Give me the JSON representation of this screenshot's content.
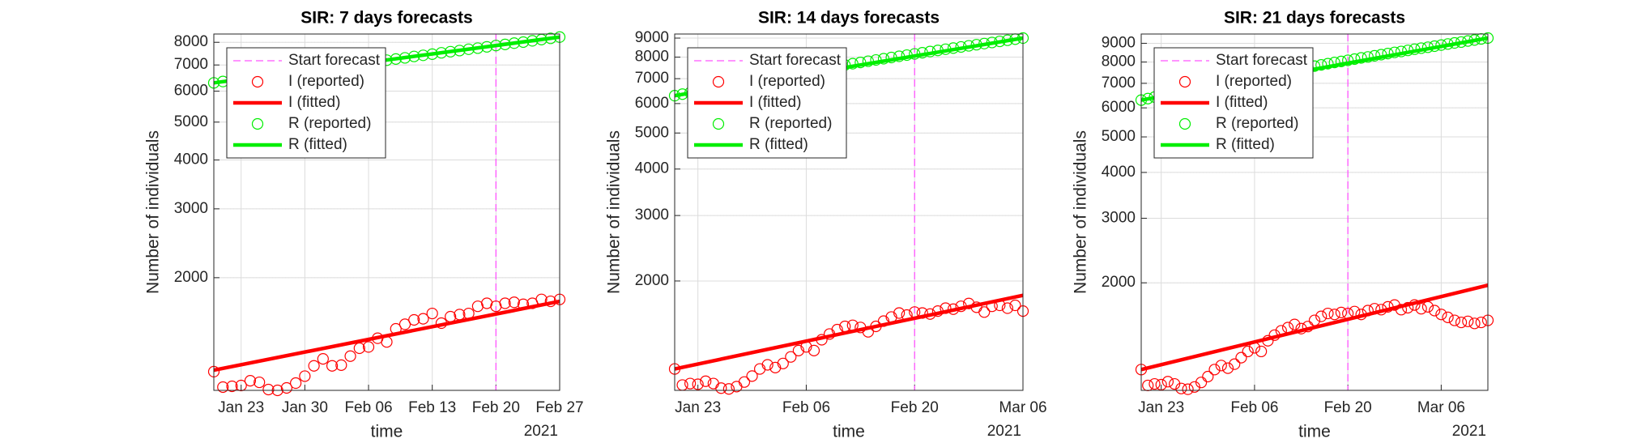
{
  "chart_data": [
    {
      "type": "line",
      "title": "SIR: 7 days forecasts",
      "xlabel": "time",
      "ylabel": "Number of individuals",
      "x_secondary_label": "2021",
      "log_y": true,
      "grid": true,
      "legend_loc": "upper left",
      "xlim": [
        "2021-01-20",
        "2021-02-27"
      ],
      "xticks": [
        {
          "value": "2021-01-23",
          "label": "Jan 23"
        },
        {
          "value": "2021-01-30",
          "label": "Jan 30"
        },
        {
          "value": "2021-02-06",
          "label": "Feb 06"
        },
        {
          "value": "2021-02-13",
          "label": "Feb 13"
        },
        {
          "value": "2021-02-20",
          "label": "Feb 20"
        },
        {
          "value": "2021-02-27",
          "label": "Feb 27"
        }
      ],
      "ylim": [
        1030,
        8400
      ],
      "yticks": [
        2000,
        3000,
        4000,
        5000,
        6000,
        7000,
        8000
      ],
      "forecast_line": {
        "name": "Start forecast",
        "x": "2021-02-20",
        "color": "#ff55ff"
      },
      "x": [
        "2021-01-20",
        "2021-01-21",
        "2021-01-22",
        "2021-01-23",
        "2021-01-24",
        "2021-01-25",
        "2021-01-26",
        "2021-01-27",
        "2021-01-28",
        "2021-01-29",
        "2021-01-30",
        "2021-01-31",
        "2021-02-01",
        "2021-02-02",
        "2021-02-03",
        "2021-02-04",
        "2021-02-05",
        "2021-02-06",
        "2021-02-07",
        "2021-02-08",
        "2021-02-09",
        "2021-02-10",
        "2021-02-11",
        "2021-02-12",
        "2021-02-13",
        "2021-02-14",
        "2021-02-15",
        "2021-02-16",
        "2021-02-17",
        "2021-02-18",
        "2021-02-19",
        "2021-02-20",
        "2021-02-21",
        "2021-02-22",
        "2021-02-23",
        "2021-02-24",
        "2021-02-25",
        "2021-02-26",
        "2021-02-27"
      ],
      "series": [
        {
          "name": "I (reported)",
          "color": "#ff0000",
          "mode": "markers",
          "values": [
            1150,
            1050,
            1055,
            1060,
            1090,
            1080,
            1035,
            1030,
            1045,
            1075,
            1120,
            1190,
            1240,
            1190,
            1195,
            1260,
            1320,
            1330,
            1400,
            1370,
            1480,
            1520,
            1560,
            1570,
            1620,
            1530,
            1590,
            1610,
            1620,
            1690,
            1720,
            1690,
            1720,
            1730,
            1710,
            1720,
            1760,
            1740,
            1760
          ]
        },
        {
          "name": "I (fitted)",
          "color": "#ff0000",
          "mode": "line",
          "x": [
            "2021-01-20",
            "2021-02-27"
          ],
          "values": [
            1160,
            1740
          ]
        },
        {
          "name": "R (reported)",
          "color": "#00ee00",
          "mode": "markers",
          "values": [
            6300,
            6350,
            6390,
            6440,
            6480,
            6530,
            6570,
            6620,
            6660,
            6710,
            6760,
            6800,
            6850,
            6900,
            6950,
            7000,
            7050,
            7100,
            7150,
            7200,
            7250,
            7300,
            7360,
            7410,
            7460,
            7520,
            7570,
            7620,
            7680,
            7730,
            7790,
            7850,
            7900,
            7960,
            8010,
            8070,
            8130,
            8190,
            8250
          ]
        },
        {
          "name": "R (fitted)",
          "color": "#00ee00",
          "mode": "line",
          "x": [
            "2021-01-20",
            "2021-02-27"
          ],
          "values": [
            6300,
            8250
          ]
        }
      ]
    },
    {
      "type": "line",
      "title": "SIR: 14 days forecasts",
      "xlabel": "time",
      "ylabel": "Number of individuals",
      "x_secondary_label": "2021",
      "log_y": true,
      "grid": true,
      "legend_loc": "upper left",
      "xlim": [
        "2021-01-20",
        "2021-03-06"
      ],
      "xticks": [
        {
          "value": "2021-01-23",
          "label": "Jan 23"
        },
        {
          "value": "2021-02-06",
          "label": "Feb 06"
        },
        {
          "value": "2021-02-20",
          "label": "Feb 20"
        },
        {
          "value": "2021-03-06",
          "label": "Mar 06"
        }
      ],
      "ylim": [
        1016,
        9230
      ],
      "yticks": [
        2000,
        3000,
        4000,
        5000,
        6000,
        7000,
        8000,
        9000
      ],
      "forecast_line": {
        "name": "Start forecast",
        "x": "2021-02-20",
        "color": "#ff55ff"
      },
      "x": [
        "2021-01-20",
        "2021-01-21",
        "2021-01-22",
        "2021-01-23",
        "2021-01-24",
        "2021-01-25",
        "2021-01-26",
        "2021-01-27",
        "2021-01-28",
        "2021-01-29",
        "2021-01-30",
        "2021-01-31",
        "2021-02-01",
        "2021-02-02",
        "2021-02-03",
        "2021-02-04",
        "2021-02-05",
        "2021-02-06",
        "2021-02-07",
        "2021-02-08",
        "2021-02-09",
        "2021-02-10",
        "2021-02-11",
        "2021-02-12",
        "2021-02-13",
        "2021-02-14",
        "2021-02-15",
        "2021-02-16",
        "2021-02-17",
        "2021-02-18",
        "2021-02-19",
        "2021-02-20",
        "2021-02-21",
        "2021-02-22",
        "2021-02-23",
        "2021-02-24",
        "2021-02-25",
        "2021-02-26",
        "2021-02-27",
        "2021-02-28",
        "2021-03-01",
        "2021-03-02",
        "2021-03-03",
        "2021-03-04",
        "2021-03-05",
        "2021-03-06"
      ],
      "series": [
        {
          "name": "I (reported)",
          "color": "#ff0000",
          "mode": "markers",
          "values": [
            1160,
            1050,
            1060,
            1055,
            1075,
            1060,
            1030,
            1025,
            1040,
            1070,
            1110,
            1160,
            1190,
            1170,
            1200,
            1250,
            1300,
            1330,
            1300,
            1390,
            1440,
            1480,
            1510,
            1520,
            1500,
            1460,
            1510,
            1560,
            1600,
            1640,
            1620,
            1650,
            1640,
            1630,
            1660,
            1690,
            1680,
            1710,
            1740,
            1700,
            1650,
            1710,
            1720,
            1690,
            1720,
            1660
          ]
        },
        {
          "name": "I (fitted)",
          "color": "#ff0000",
          "mode": "line",
          "x": [
            "2021-01-20",
            "2021-03-06"
          ],
          "values": [
            1160,
            1830
          ]
        },
        {
          "name": "R (reported)",
          "color": "#00ee00",
          "mode": "markers",
          "values": [
            6300,
            6360,
            6420,
            6480,
            6540,
            6600,
            6660,
            6720,
            6780,
            6840,
            6900,
            6960,
            7020,
            7080,
            7140,
            7200,
            7260,
            7320,
            7380,
            7440,
            7500,
            7560,
            7620,
            7680,
            7740,
            7800,
            7860,
            7920,
            7980,
            8040,
            8100,
            8160,
            8220,
            8280,
            8340,
            8400,
            8460,
            8520,
            8580,
            8640,
            8700,
            8760,
            8820,
            8880,
            8940,
            9000
          ]
        },
        {
          "name": "R (fitted)",
          "color": "#00ee00",
          "mode": "line",
          "x": [
            "2021-01-20",
            "2021-03-06"
          ],
          "values": [
            6300,
            9000
          ]
        }
      ]
    },
    {
      "type": "line",
      "title": "SIR: 21 days forecasts",
      "xlabel": "time",
      "ylabel": "Number of individuals",
      "x_secondary_label": "2021",
      "log_y": true,
      "grid": true,
      "legend_loc": "upper left",
      "xlim": [
        "2021-01-20",
        "2021-03-13"
      ],
      "xticks": [
        {
          "value": "2021-01-23",
          "label": "Jan 23"
        },
        {
          "value": "2021-02-06",
          "label": "Feb 06"
        },
        {
          "value": "2021-02-20",
          "label": "Feb 20"
        },
        {
          "value": "2021-03-06",
          "label": "Mar 06"
        }
      ],
      "ylim": [
        1018,
        9540
      ],
      "yticks": [
        2000,
        3000,
        4000,
        5000,
        6000,
        7000,
        8000,
        9000
      ],
      "forecast_line": {
        "name": "Start forecast",
        "x": "2021-02-20",
        "color": "#ff55ff"
      },
      "x": [
        "2021-01-20",
        "2021-01-21",
        "2021-01-22",
        "2021-01-23",
        "2021-01-24",
        "2021-01-25",
        "2021-01-26",
        "2021-01-27",
        "2021-01-28",
        "2021-01-29",
        "2021-01-30",
        "2021-01-31",
        "2021-02-01",
        "2021-02-02",
        "2021-02-03",
        "2021-02-04",
        "2021-02-05",
        "2021-02-06",
        "2021-02-07",
        "2021-02-08",
        "2021-02-09",
        "2021-02-10",
        "2021-02-11",
        "2021-02-12",
        "2021-02-13",
        "2021-02-14",
        "2021-02-15",
        "2021-02-16",
        "2021-02-17",
        "2021-02-18",
        "2021-02-19",
        "2021-02-20",
        "2021-02-21",
        "2021-02-22",
        "2021-02-23",
        "2021-02-24",
        "2021-02-25",
        "2021-02-26",
        "2021-02-27",
        "2021-02-28",
        "2021-03-01",
        "2021-03-02",
        "2021-03-03",
        "2021-03-04",
        "2021-03-05",
        "2021-03-06",
        "2021-03-07",
        "2021-03-08",
        "2021-03-09",
        "2021-03-10",
        "2021-03-11",
        "2021-03-12",
        "2021-03-13"
      ],
      "series": [
        {
          "name": "I (reported)",
          "color": "#ff0000",
          "mode": "markers",
          "values": [
            1160,
            1050,
            1060,
            1055,
            1075,
            1060,
            1030,
            1025,
            1040,
            1070,
            1110,
            1160,
            1190,
            1170,
            1200,
            1250,
            1300,
            1330,
            1300,
            1390,
            1440,
            1480,
            1510,
            1540,
            1500,
            1520,
            1580,
            1620,
            1650,
            1640,
            1660,
            1650,
            1670,
            1640,
            1680,
            1700,
            1690,
            1720,
            1740,
            1690,
            1710,
            1740,
            1700,
            1720,
            1680,
            1640,
            1610,
            1580,
            1560,
            1570,
            1550,
            1560,
            1580
          ]
        },
        {
          "name": "I (fitted)",
          "color": "#ff0000",
          "mode": "line",
          "x": [
            "2021-01-20",
            "2021-03-13"
          ],
          "values": [
            1160,
            1970
          ]
        },
        {
          "name": "R (reported)",
          "color": "#00ee00",
          "mode": "markers",
          "values": [
            6300,
            6360,
            6420,
            6470,
            6530,
            6590,
            6650,
            6700,
            6760,
            6820,
            6880,
            6940,
            6990,
            7050,
            7110,
            7170,
            7220,
            7280,
            7340,
            7400,
            7460,
            7510,
            7570,
            7630,
            7690,
            7740,
            7800,
            7860,
            7920,
            7980,
            8030,
            8090,
            8150,
            8210,
            8260,
            8320,
            8380,
            8440,
            8500,
            8550,
            8610,
            8670,
            8730,
            8780,
            8840,
            8900,
            8960,
            9020,
            9070,
            9130,
            9190,
            9250,
            9300
          ]
        },
        {
          "name": "R (fitted)",
          "color": "#00ee00",
          "mode": "line",
          "x": [
            "2021-01-20",
            "2021-03-13"
          ],
          "values": [
            6300,
            9300
          ]
        }
      ]
    }
  ]
}
